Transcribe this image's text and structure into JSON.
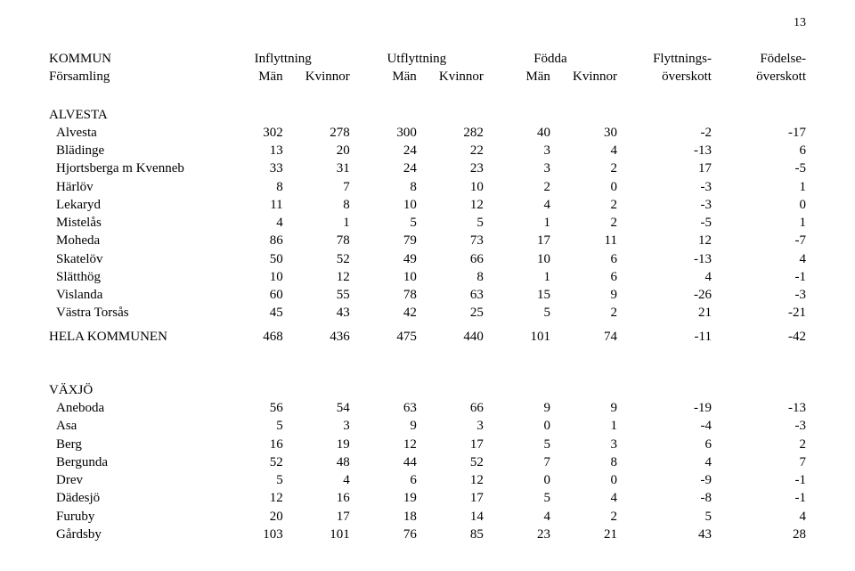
{
  "page_number": "13",
  "header": {
    "row1": {
      "label": "KOMMUN",
      "inflytt": "Inflyttning",
      "utflytt": "Utflyttning",
      "fodda": "Födda",
      "flyttover": "Flyttnings-",
      "fodover": "Födelse-"
    },
    "row2": {
      "label": "Församling",
      "man1": "Män",
      "kv1": "Kvinnor",
      "man2": "Män",
      "kv2": "Kvinnor",
      "man3": "Män",
      "kv3": "Kvinnor",
      "flyttover": "överskott",
      "fodover": "överskott"
    }
  },
  "sections": [
    {
      "name": "ALVESTA",
      "rows": [
        {
          "label": "Alvesta",
          "v": [
            "302",
            "278",
            "300",
            "282",
            "40",
            "30",
            "-2",
            "-17"
          ]
        },
        {
          "label": "Blädinge",
          "v": [
            "13",
            "20",
            "24",
            "22",
            "3",
            "4",
            "-13",
            "6"
          ]
        },
        {
          "label": "Hjortsberga m Kvenneb",
          "v": [
            "33",
            "31",
            "24",
            "23",
            "3",
            "2",
            "17",
            "-5"
          ]
        },
        {
          "label": "Härlöv",
          "v": [
            "8",
            "7",
            "8",
            "10",
            "2",
            "0",
            "-3",
            "1"
          ]
        },
        {
          "label": "Lekaryd",
          "v": [
            "11",
            "8",
            "10",
            "12",
            "4",
            "2",
            "-3",
            "0"
          ]
        },
        {
          "label": "Mistelås",
          "v": [
            "4",
            "1",
            "5",
            "5",
            "1",
            "2",
            "-5",
            "1"
          ]
        },
        {
          "label": "Moheda",
          "v": [
            "86",
            "78",
            "79",
            "73",
            "17",
            "11",
            "12",
            "-7"
          ]
        },
        {
          "label": "Skatelöv",
          "v": [
            "50",
            "52",
            "49",
            "66",
            "10",
            "6",
            "-13",
            "4"
          ]
        },
        {
          "label": "Slätthög",
          "v": [
            "10",
            "12",
            "10",
            "8",
            "1",
            "6",
            "4",
            "-1"
          ]
        },
        {
          "label": "Vislanda",
          "v": [
            "60",
            "55",
            "78",
            "63",
            "15",
            "9",
            "-26",
            "-3"
          ]
        },
        {
          "label": "Västra Torsås",
          "v": [
            "45",
            "43",
            "42",
            "25",
            "5",
            "2",
            "21",
            "-21"
          ]
        }
      ],
      "total": {
        "label": "HELA KOMMUNEN",
        "v": [
          "468",
          "436",
          "475",
          "440",
          "101",
          "74",
          "-11",
          "-42"
        ]
      }
    },
    {
      "name": "VÄXJÖ",
      "rows": [
        {
          "label": "Aneboda",
          "v": [
            "56",
            "54",
            "63",
            "66",
            "9",
            "9",
            "-19",
            "-13"
          ]
        },
        {
          "label": "Asa",
          "v": [
            "5",
            "3",
            "9",
            "3",
            "0",
            "1",
            "-4",
            "-3"
          ]
        },
        {
          "label": "Berg",
          "v": [
            "16",
            "19",
            "12",
            "17",
            "5",
            "3",
            "6",
            "2"
          ]
        },
        {
          "label": "Bergunda",
          "v": [
            "52",
            "48",
            "44",
            "52",
            "7",
            "8",
            "4",
            "7"
          ]
        },
        {
          "label": "Drev",
          "v": [
            "5",
            "4",
            "6",
            "12",
            "0",
            "0",
            "-9",
            "-1"
          ]
        },
        {
          "label": "Dädesjö",
          "v": [
            "12",
            "16",
            "19",
            "17",
            "5",
            "4",
            "-8",
            "-1"
          ]
        },
        {
          "label": "Furuby",
          "v": [
            "20",
            "17",
            "18",
            "14",
            "4",
            "2",
            "5",
            "4"
          ]
        },
        {
          "label": "Gårdsby",
          "v": [
            "103",
            "101",
            "76",
            "85",
            "23",
            "21",
            "43",
            "28"
          ]
        }
      ]
    }
  ]
}
